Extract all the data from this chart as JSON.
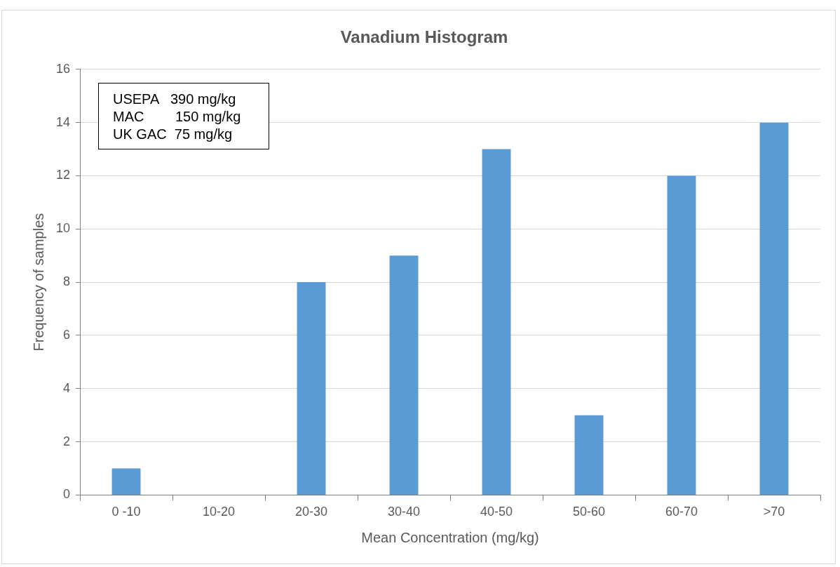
{
  "chart_data": {
    "type": "bar",
    "title": "Vanadium Histogram",
    "xlabel": "Mean Concentration (mg/kg)",
    "ylabel": "Frequency of samples",
    "categories": [
      "0 -10",
      "10-20",
      "20-30",
      "30-40",
      "40-50",
      "50-60",
      "60-70",
      ">70"
    ],
    "values": [
      1,
      0,
      8,
      9,
      13,
      3,
      12,
      14
    ],
    "color": "#5b9bd5",
    "ylim": [
      0,
      16
    ],
    "yticks": [
      0,
      2,
      4,
      6,
      8,
      10,
      12,
      14,
      16
    ],
    "grid": "y",
    "annotations": [
      "USEPA   390 mg/kg",
      "MAC        150 mg/kg",
      "UK GAC  75 mg/kg"
    ]
  }
}
